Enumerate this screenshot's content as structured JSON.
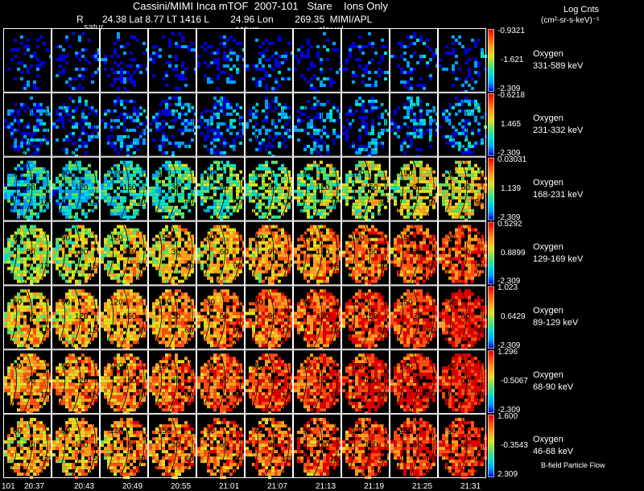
{
  "header": {
    "title": "Cassini/MIMI Inca mTOF  2007-101   Stare    Ions Only",
    "ephem": "R       24.38 Lat 8.77 LT 1416 L        24.96 Lon        269.35  MIMI/APL",
    "cbar_title": "Log Cnts",
    "cbar_units": "(cm²-sr-s-keV)⁻¹"
  },
  "frame_tags": [
    "satur",
    "saturn",
    "sky-wl"
  ],
  "footer": {
    "date_label": "101",
    "time_labels": [
      "20:37",
      "20:43",
      "20:49",
      "20:55",
      "21:01",
      "21:07",
      "21:13",
      "21:19",
      "21:25",
      "21:31"
    ],
    "flow_label": "B-field Particle Flow"
  },
  "contour_labels": [
    "30",
    "60",
    "90",
    "120",
    "150"
  ],
  "chart_data": {
    "type": "heatmap",
    "colorscale": [
      "#0000d8",
      "#00a0ff",
      "#00e0d0",
      "#60e060",
      "#e0e020",
      "#ffa020",
      "#ff5010",
      "#e00000"
    ],
    "rows": [
      {
        "species": "Oxygen",
        "energy": "331-589 keV",
        "cmax": "-0.9321",
        "cmid": "-1.621",
        "cmin": "-2.309",
        "level": 0.06,
        "trend": 0.02,
        "density": 0.28
      },
      {
        "species": "Oxygen",
        "energy": "231-332 keV",
        "cmax": "-0.6218",
        "cmid": "1.465",
        "cmin": "-2.309",
        "level": 0.12,
        "trend": 0.05,
        "density": 0.45
      },
      {
        "species": "Oxygen",
        "energy": "168-231 keV",
        "cmax": "0.03031",
        "cmid": "1.139",
        "cmin": "-2.309",
        "level": 0.28,
        "trend": 0.3,
        "density": 0.72
      },
      {
        "species": "Oxygen",
        "energy": "129-169 keV",
        "cmax": "0.5292",
        "cmid": "0.8899",
        "cmin": "-2.309",
        "level": 0.52,
        "trend": 0.3,
        "density": 0.8
      },
      {
        "species": "Oxygen",
        "energy": "89-129 keV",
        "cmax": "1.023",
        "cmid": "0.6429",
        "cmin": "-2.309",
        "level": 0.62,
        "trend": 0.28,
        "density": 0.85
      },
      {
        "species": "Oxygen",
        "energy": "68-90 keV",
        "cmax": "1.296",
        "cmid": "-0.5067",
        "cmin": "-2.309",
        "level": 0.68,
        "trend": 0.25,
        "density": 0.85
      },
      {
        "species": "Oxygen",
        "energy": "46-68 keV",
        "cmax": "1.600",
        "cmid": "-0.3543",
        "cmin": "2.309",
        "level": 0.66,
        "trend": 0.22,
        "density": 0.8
      }
    ]
  }
}
